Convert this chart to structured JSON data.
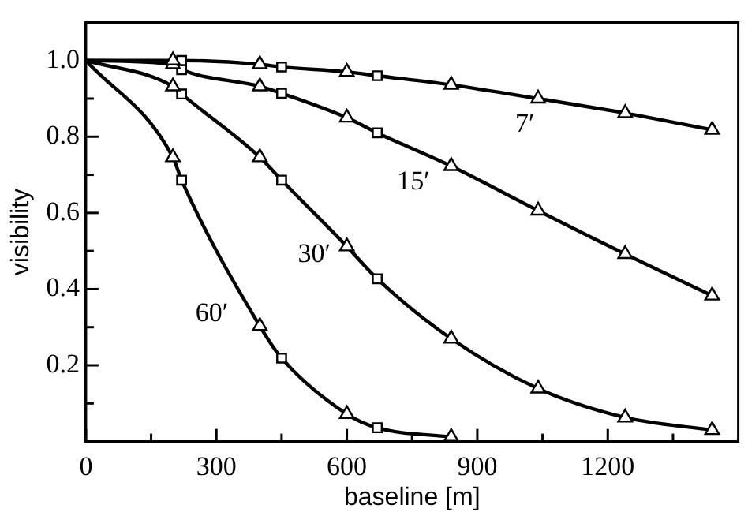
{
  "chart_data": {
    "type": "line",
    "xlabel": "baseline [m]",
    "ylabel": "visibility",
    "xlim": [
      0,
      1500
    ],
    "ylim": [
      0,
      1.1
    ],
    "xticks": [
      0,
      {
        "value": 150,
        "label": null
      },
      300,
      {
        "value": 450,
        "label": null
      },
      600,
      {
        "value": 750,
        "label": null
      },
      900,
      {
        "value": 1050,
        "label": null
      },
      1200,
      {
        "value": 1350,
        "label": null
      }
    ],
    "yticks": [
      {
        "value": 0.1,
        "label": null
      },
      0.2,
      {
        "value": 0.3,
        "label": null
      },
      0.4,
      {
        "value": 0.5,
        "label": null
      },
      0.6,
      {
        "value": 0.7,
        "label": null
      },
      0.8,
      {
        "value": 0.9,
        "label": null
      },
      {
        "value": 1,
        "label": "1.0"
      }
    ],
    "grid": false,
    "legend": false,
    "series": [
      {
        "type": "line",
        "marker": "none",
        "color": "#000000",
        "x": [
          0,
          200,
          220,
          400,
          450,
          600,
          670,
          840,
          1040,
          1240,
          1440
        ],
        "values": [
          1.0,
          1.0,
          1.0,
          0.99,
          0.983,
          0.97,
          0.96,
          0.936,
          0.9,
          0.862,
          0.818
        ]
      },
      {
        "type": "line",
        "marker": "none",
        "color": "#000000",
        "x": [
          0,
          200,
          220,
          400,
          450,
          600,
          670,
          840,
          1040,
          1240,
          1440
        ],
        "values": [
          1.0,
          0.99,
          0.976,
          0.932,
          0.914,
          0.85,
          0.81,
          0.723,
          0.606,
          0.492,
          0.383
        ]
      },
      {
        "type": "line",
        "marker": "none",
        "color": "#000000",
        "x": [
          0,
          200,
          220,
          400,
          450,
          600,
          670,
          840,
          1040,
          1240,
          1440
        ],
        "values": [
          1.0,
          0.932,
          0.912,
          0.746,
          0.686,
          0.512,
          0.427,
          0.27,
          0.139,
          0.063,
          0.03
        ]
      },
      {
        "type": "line",
        "marker": "none",
        "color": "#000000",
        "x": [
          0,
          200,
          220,
          400,
          450,
          600,
          670,
          840
        ],
        "values": [
          1.0,
          0.746,
          0.686,
          0.303,
          0.219,
          0.072,
          0.036,
          0.012
        ]
      },
      {
        "type": "scatter",
        "marker": "triangle",
        "color": "#000000",
        "x": [
          200,
          400,
          600,
          840,
          1040,
          1240,
          1440
        ],
        "values": [
          1.0,
          0.99,
          0.97,
          0.936,
          0.9,
          0.862,
          0.818
        ]
      },
      {
        "type": "scatter",
        "marker": "square",
        "color": "#000000",
        "x": [
          220,
          450,
          670
        ],
        "values": [
          1.0,
          0.983,
          0.96
        ]
      },
      {
        "type": "scatter",
        "marker": "triangle",
        "color": "#000000",
        "x": [
          200,
          400,
          600,
          840,
          1040,
          1240,
          1440
        ],
        "values": [
          0.99,
          0.932,
          0.85,
          0.723,
          0.606,
          0.492,
          0.383
        ]
      },
      {
        "type": "scatter",
        "marker": "square",
        "color": "#000000",
        "x": [
          220,
          450,
          670
        ],
        "values": [
          0.976,
          0.914,
          0.81
        ]
      },
      {
        "type": "scatter",
        "marker": "triangle",
        "color": "#000000",
        "x": [
          200,
          400,
          600,
          840,
          1040,
          1240,
          1440
        ],
        "values": [
          0.932,
          0.746,
          0.512,
          0.27,
          0.139,
          0.063,
          0.03
        ]
      },
      {
        "type": "scatter",
        "marker": "square",
        "color": "#000000",
        "x": [
          220,
          450,
          670
        ],
        "values": [
          0.912,
          0.686,
          0.427
        ]
      },
      {
        "type": "scatter",
        "marker": "triangle",
        "color": "#000000",
        "x": [
          200,
          400,
          600,
          840
        ],
        "values": [
          0.746,
          0.303,
          0.072,
          0.012
        ]
      },
      {
        "type": "scatter",
        "marker": "square",
        "color": "#000000",
        "x": [
          220,
          450,
          670
        ],
        "values": [
          0.686,
          0.219,
          0.036
        ]
      }
    ],
    "annotations": [
      "7′",
      "15′",
      "30′",
      "60′"
    ]
  }
}
